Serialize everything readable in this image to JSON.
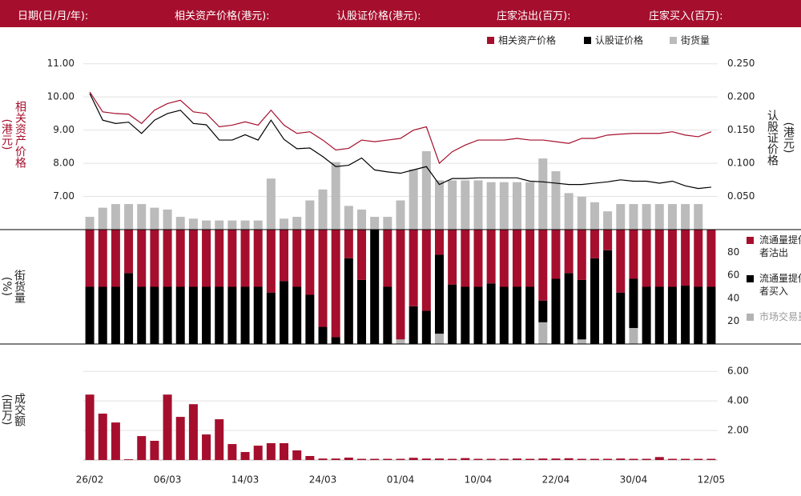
{
  "header": {
    "labels": [
      "日期(日/月/年):",
      "相关资产价格(港元):",
      "认股证价格(港元):",
      "庄家沽出(百万):",
      "庄家买入(百万):"
    ]
  },
  "chart_data": [
    {
      "type": "line",
      "ylabel": "相关资产价格",
      "ylabel_unit": "(港元)",
      "y2label": "认股证价格",
      "y2label_unit": "(港元)",
      "ylim": [
        6.0,
        11.5
      ],
      "yticks": [
        {
          "value": 7,
          "label": "7.00"
        },
        {
          "value": 8,
          "label": "8.00"
        },
        {
          "value": 9,
          "label": "9.00"
        },
        {
          "value": 10,
          "label": "10.00"
        },
        {
          "value": 11,
          "label": "11.00"
        }
      ],
      "y2lim": [
        0,
        0.275
      ],
      "y2ticks": [
        {
          "value": 0.05,
          "label": "0.050"
        },
        {
          "value": 0.1,
          "label": "0.100"
        },
        {
          "value": 0.15,
          "label": "0.150"
        },
        {
          "value": 0.2,
          "label": "0.200"
        },
        {
          "value": 0.25,
          "label": "0.250"
        }
      ],
      "y3lim": [
        0,
        100
      ],
      "grid": true,
      "series": [
        {
          "name": "相关资产价格",
          "color": "#a50f2d",
          "values": [
            10.15,
            9.55,
            9.5,
            9.48,
            9.2,
            9.6,
            9.8,
            9.9,
            9.55,
            9.5,
            9.1,
            9.15,
            9.25,
            9.15,
            9.6,
            9.15,
            8.9,
            8.95,
            8.7,
            8.4,
            8.45,
            8.7,
            8.65,
            8.7,
            8.75,
            9.0,
            9.1,
            8.0,
            8.35,
            8.55,
            8.7,
            8.7,
            8.7,
            8.75,
            8.7,
            8.7,
            8.65,
            8.6,
            8.75,
            8.75,
            8.85,
            8.88,
            8.9,
            8.9,
            8.9,
            8.95,
            8.85,
            8.8,
            8.95
          ]
        },
        {
          "name": "认股证价格",
          "color": "#000000",
          "axis": "y2",
          "values": [
            0.205,
            0.165,
            0.16,
            0.162,
            0.145,
            0.165,
            0.175,
            0.18,
            0.16,
            0.158,
            0.135,
            0.135,
            0.143,
            0.135,
            0.165,
            0.136,
            0.122,
            0.123,
            0.11,
            0.095,
            0.097,
            0.108,
            0.09,
            0.087,
            0.085,
            0.09,
            0.095,
            0.068,
            0.077,
            0.077,
            0.078,
            0.078,
            0.078,
            0.078,
            0.073,
            0.072,
            0.07,
            0.068,
            0.068,
            0.07,
            0.072,
            0.075,
            0.073,
            0.073,
            0.07,
            0.073,
            0.066,
            0.062,
            0.064
          ]
        },
        {
          "name": "街货量",
          "color": "#bbbbbb",
          "type": "bar",
          "axis": "y3",
          "values": [
            7,
            12,
            14,
            14,
            14,
            12,
            11,
            7,
            6,
            5,
            5,
            5,
            5,
            5,
            28,
            6,
            7,
            16,
            22,
            37,
            13,
            11,
            7,
            7,
            16,
            33,
            43,
            27,
            27,
            27,
            27,
            26,
            26,
            26,
            26,
            39,
            32,
            20,
            18,
            15,
            10,
            14,
            14,
            14,
            14,
            14,
            14,
            14,
            null
          ]
        }
      ]
    },
    {
      "type": "stacked_bar",
      "ylabel": "街货量",
      "ylabel_unit": "(%)",
      "ylim": [
        0,
        100
      ],
      "yticks": [
        20,
        40,
        60,
        80
      ],
      "series": [
        {
          "name": "流通量提供者沽出",
          "color": "#a50f2d",
          "values": [
            50,
            50,
            50,
            38,
            50,
            50,
            50,
            50,
            50,
            50,
            50,
            50,
            50,
            50,
            55,
            45,
            50,
            57,
            85,
            94,
            25,
            44,
            0,
            50,
            96,
            67,
            71,
            22,
            48,
            50,
            50,
            47,
            50,
            50,
            50,
            62,
            43,
            38,
            44,
            25,
            18,
            55,
            43,
            50,
            50,
            50,
            49,
            50,
            50
          ]
        },
        {
          "name": "流通量提供者买入",
          "color": "#000000",
          "values": [
            50,
            50,
            50,
            62,
            50,
            50,
            50,
            50,
            50,
            50,
            50,
            50,
            50,
            50,
            45,
            55,
            50,
            43,
            15,
            6,
            75,
            56,
            100,
            50,
            0,
            33,
            29,
            69,
            52,
            50,
            50,
            53,
            50,
            50,
            50,
            19,
            57,
            62,
            52,
            75,
            82,
            45,
            43,
            50,
            50,
            50,
            51,
            50,
            50
          ]
        },
        {
          "name": "市场交易量",
          "color": "#b3b3b3",
          "values": [
            0,
            0,
            0,
            0,
            0,
            0,
            0,
            0,
            0,
            0,
            0,
            0,
            0,
            0,
            0,
            0,
            0,
            0,
            0,
            0,
            0,
            0,
            0,
            0,
            4,
            0,
            0,
            9,
            0,
            0,
            0,
            0,
            0,
            0,
            0,
            19,
            0,
            0,
            4,
            0,
            0,
            0,
            14,
            0,
            0,
            0,
            0,
            0,
            0
          ]
        }
      ]
    },
    {
      "type": "bar",
      "ylabel": "成交额",
      "ylabel_unit": "(百万)",
      "ylim": [
        0,
        6.5
      ],
      "yticks": [
        {
          "value": 2,
          "label": "2.00"
        },
        {
          "value": 4,
          "label": "4.00"
        },
        {
          "value": 6,
          "label": "6.00"
        }
      ],
      "grid": true,
      "color": "#a50f2d",
      "categories": [
        "26/02",
        null,
        null,
        null,
        null,
        null,
        "06/03",
        null,
        null,
        null,
        null,
        null,
        "14/03",
        null,
        null,
        null,
        null,
        null,
        "24/03",
        null,
        null,
        null,
        null,
        null,
        "01/04",
        null,
        null,
        null,
        null,
        null,
        "10/04",
        null,
        null,
        null,
        null,
        null,
        "22/04",
        null,
        null,
        null,
        null,
        null,
        "30/04",
        null,
        null,
        null,
        null,
        null,
        "12/05"
      ],
      "values": [
        4.43,
        3.14,
        2.54,
        0.05,
        1.62,
        1.3,
        4.43,
        2.92,
        3.78,
        1.73,
        2.76,
        1.08,
        0.54,
        0.97,
        1.14,
        1.14,
        0.65,
        0.27,
        0.1,
        0.1,
        0.16,
        0.08,
        0.08,
        0.08,
        0.08,
        0.15,
        0.1,
        0.1,
        0.08,
        0.13,
        0.08,
        0.08,
        0.08,
        0.1,
        0.08,
        0.1,
        0.1,
        0.12,
        0.08,
        0.08,
        0.08,
        0.1,
        0.08,
        0.08,
        0.2,
        0.08,
        0.08,
        0.08,
        0.08
      ]
    }
  ]
}
